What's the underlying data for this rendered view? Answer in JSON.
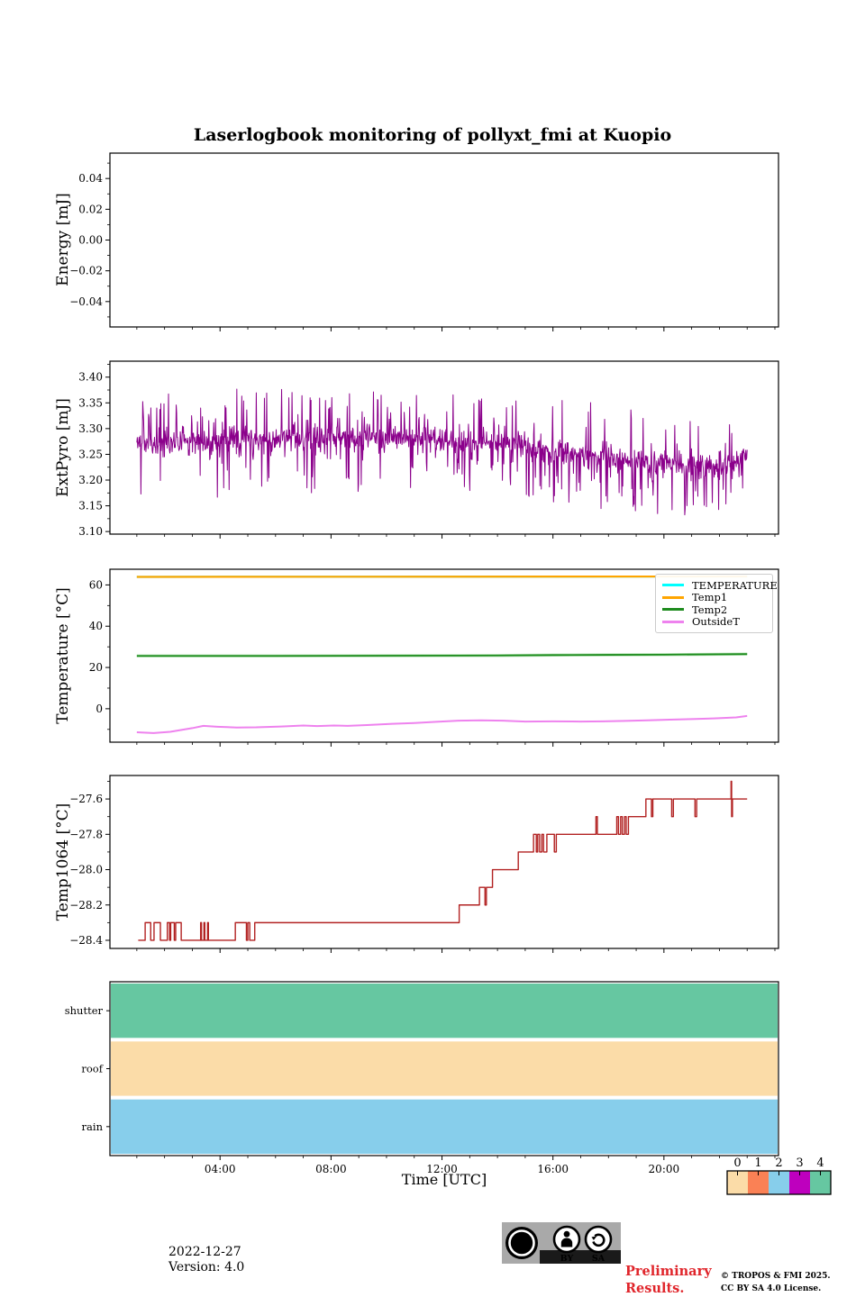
{
  "title": "Laserlogbook monitoring of pollyxt_fmi at Kuopio",
  "x_axis": {
    "label": "Time [UTC]",
    "ticks": [
      {
        "h": 4,
        "label": "04:00"
      },
      {
        "h": 8,
        "label": "08:00"
      },
      {
        "h": 12,
        "label": "12:00"
      },
      {
        "h": 16,
        "label": "16:00"
      },
      {
        "h": 20,
        "label": "20:00"
      }
    ]
  },
  "chart_data": [
    {
      "id": "energy",
      "type": "line",
      "ylabel": "Energy [mJ]",
      "ylim": [
        -0.0565,
        0.0565
      ],
      "yminor": 0.01,
      "yticks": [
        {
          "v": 0.04,
          "label": "0.04"
        },
        {
          "v": 0.02,
          "label": "0.02"
        },
        {
          "v": 0.0,
          "label": "0.00"
        },
        {
          "v": -0.02,
          "label": "−0.02"
        },
        {
          "v": -0.04,
          "label": "−0.04"
        }
      ],
      "series": []
    },
    {
      "id": "extpyro",
      "type": "line",
      "ylabel": "ExtPyro [mJ]",
      "ylim": [
        3.095,
        3.431
      ],
      "yminor": 0.025,
      "yticks": [
        {
          "v": 3.4,
          "label": "3.40"
        },
        {
          "v": 3.35,
          "label": "3.35"
        },
        {
          "v": 3.3,
          "label": "3.30"
        },
        {
          "v": 3.25,
          "label": "3.25"
        },
        {
          "v": 3.2,
          "label": "3.20"
        },
        {
          "v": 3.15,
          "label": "3.15"
        },
        {
          "v": 3.1,
          "label": "3.10"
        }
      ],
      "series": [
        {
          "name": "ExtPyro",
          "color": "#8B008B",
          "width": 1.0,
          "noise": {
            "seed": 11,
            "t0": 1.0,
            "t1": 23.0,
            "n": 1350,
            "sigma": 0.012,
            "spike_prob": 0.3,
            "spike_min": 0.015,
            "spike_amp": 0.085,
            "clip": [
              3.098,
              3.423
            ],
            "baseline": [
              [
                1,
                3.272
              ],
              [
                5,
                3.278
              ],
              [
                9,
                3.283
              ],
              [
                12,
                3.28
              ],
              [
                14,
                3.272
              ],
              [
                16,
                3.258
              ],
              [
                18,
                3.243
              ],
              [
                20,
                3.234
              ],
              [
                21.5,
                3.227
              ],
              [
                22.5,
                3.23
              ],
              [
                23,
                3.258
              ]
            ]
          }
        }
      ]
    },
    {
      "id": "temperature",
      "type": "line",
      "ylabel": "Temperature [°C]",
      "ylim": [
        -16.2,
        67.6
      ],
      "yminor": 10,
      "legend": true,
      "yticks": [
        {
          "v": 60,
          "label": "60"
        },
        {
          "v": 40,
          "label": "40"
        },
        {
          "v": 20,
          "label": "20"
        },
        {
          "v": 0,
          "label": "0"
        }
      ],
      "series": [
        {
          "name": "TEMPERATURE",
          "color": "#00FFFF",
          "width": 2.2,
          "points": [
            [
              1,
              63.9
            ],
            [
              23,
              64.1
            ]
          ]
        },
        {
          "name": "Temp1",
          "color": "#FFA500",
          "width": 2.2,
          "points": [
            [
              1,
              63.9
            ],
            [
              23,
              64.1
            ]
          ]
        },
        {
          "name": "Temp2",
          "color": "#1E8B1E",
          "width": 1.8,
          "glow": "#7CCD7C",
          "points": [
            [
              1,
              25.6
            ],
            [
              6,
              25.6
            ],
            [
              10,
              25.7
            ],
            [
              14,
              25.8
            ],
            [
              16,
              26.0
            ],
            [
              18,
              26.1
            ],
            [
              20,
              26.2
            ],
            [
              23,
              26.5
            ]
          ]
        },
        {
          "name": "OutsideT",
          "color": "#EE82EE",
          "width": 2.0,
          "points": [
            [
              1,
              -11.4
            ],
            [
              1.6,
              -11.8
            ],
            [
              2.2,
              -11.2
            ],
            [
              3.0,
              -9.4
            ],
            [
              3.4,
              -8.3
            ],
            [
              3.9,
              -8.7
            ],
            [
              4.6,
              -9.1
            ],
            [
              5.3,
              -9.0
            ],
            [
              6.2,
              -8.6
            ],
            [
              7.0,
              -8.1
            ],
            [
              7.5,
              -8.4
            ],
            [
              8.1,
              -8.1
            ],
            [
              8.6,
              -8.3
            ],
            [
              9.3,
              -7.9
            ],
            [
              10.2,
              -7.3
            ],
            [
              11.0,
              -6.9
            ],
            [
              11.8,
              -6.3
            ],
            [
              12.6,
              -5.8
            ],
            [
              13.4,
              -5.6
            ],
            [
              14.2,
              -5.8
            ],
            [
              15.0,
              -6.2
            ],
            [
              16.0,
              -6.1
            ],
            [
              17.0,
              -6.2
            ],
            [
              17.8,
              -6.1
            ],
            [
              18.6,
              -5.9
            ],
            [
              19.4,
              -5.6
            ],
            [
              20.2,
              -5.3
            ],
            [
              21.0,
              -5.0
            ],
            [
              21.8,
              -4.7
            ],
            [
              22.6,
              -4.2
            ],
            [
              23.0,
              -3.5
            ]
          ]
        }
      ]
    },
    {
      "id": "temp1064",
      "type": "line",
      "ylabel": "Temp1064 [°C]",
      "ylim": [
        -28.446,
        -27.467
      ],
      "yminor": 0.1,
      "yticks": [
        {
          "v": -27.6,
          "label": "−27.6"
        },
        {
          "v": -27.8,
          "label": "−27.8"
        },
        {
          "v": -28.0,
          "label": "−28.0"
        },
        {
          "v": -28.2,
          "label": "−28.2"
        },
        {
          "v": -28.4,
          "label": "−28.4"
        }
      ],
      "series": [
        {
          "name": "Temp1064",
          "color": "#B22222",
          "width": 1.4,
          "step": true,
          "points": [
            [
              1.05,
              -28.4
            ],
            [
              1.3,
              -28.3
            ],
            [
              1.5,
              -28.4
            ],
            [
              1.62,
              -28.3
            ],
            [
              1.85,
              -28.4
            ],
            [
              2.1,
              -28.3
            ],
            [
              2.18,
              -28.4
            ],
            [
              2.22,
              -28.3
            ],
            [
              2.35,
              -28.4
            ],
            [
              2.4,
              -28.3
            ],
            [
              2.6,
              -28.4
            ],
            [
              3.3,
              -28.3
            ],
            [
              3.33,
              -28.4
            ],
            [
              3.42,
              -28.3
            ],
            [
              3.45,
              -28.4
            ],
            [
              3.55,
              -28.3
            ],
            [
              3.58,
              -28.4
            ],
            [
              4.55,
              -28.3
            ],
            [
              4.95,
              -28.4
            ],
            [
              5.0,
              -28.3
            ],
            [
              5.07,
              -28.4
            ],
            [
              5.25,
              -28.3
            ],
            [
              12.62,
              -28.2
            ],
            [
              13.35,
              -28.1
            ],
            [
              13.55,
              -28.2
            ],
            [
              13.6,
              -28.1
            ],
            [
              13.82,
              -28.0
            ],
            [
              14.75,
              -27.9
            ],
            [
              15.3,
              -27.8
            ],
            [
              15.4,
              -27.9
            ],
            [
              15.45,
              -27.8
            ],
            [
              15.52,
              -27.9
            ],
            [
              15.6,
              -27.8
            ],
            [
              15.66,
              -27.9
            ],
            [
              15.78,
              -27.8
            ],
            [
              16.05,
              -27.9
            ],
            [
              16.12,
              -27.8
            ],
            [
              17.55,
              -27.7
            ],
            [
              17.6,
              -27.8
            ],
            [
              18.3,
              -27.7
            ],
            [
              18.36,
              -27.8
            ],
            [
              18.44,
              -27.7
            ],
            [
              18.5,
              -27.8
            ],
            [
              18.58,
              -27.7
            ],
            [
              18.64,
              -27.8
            ],
            [
              18.72,
              -27.7
            ],
            [
              19.35,
              -27.6
            ],
            [
              19.55,
              -27.7
            ],
            [
              19.6,
              -27.6
            ],
            [
              20.28,
              -27.7
            ],
            [
              20.34,
              -27.6
            ],
            [
              21.12,
              -27.7
            ],
            [
              21.18,
              -27.6
            ],
            [
              22.42,
              -27.5
            ],
            [
              22.44,
              -27.7
            ],
            [
              22.47,
              -27.6
            ],
            [
              23.0,
              -27.6
            ]
          ]
        }
      ]
    },
    {
      "id": "status",
      "type": "status-bands",
      "rows": [
        {
          "label": "shutter",
          "color": "#66C7A1"
        },
        {
          "label": "roof",
          "color": "#FBDCA8"
        },
        {
          "label": "rain",
          "color": "#87CEEB"
        }
      ]
    }
  ],
  "colorbar": {
    "labels": [
      "0",
      "1",
      "2",
      "3",
      "4"
    ],
    "colors": [
      "#FBDCA8",
      "#FA8155",
      "#87CEEB",
      "#BE00BE",
      "#66C7A1"
    ]
  },
  "footer": {
    "date": "2022-12-27",
    "version": "Version: 4.0"
  },
  "preliminary": {
    "line1": "Preliminary",
    "line2": "Results.",
    "color": "#E0252B"
  },
  "copyright": {
    "line1": "© TROPOS & FMI 2025.",
    "line2": "CC BY SA 4.0 License."
  },
  "cc_badge": {
    "cc": "CC",
    "by": "BY",
    "sa": "SA"
  }
}
